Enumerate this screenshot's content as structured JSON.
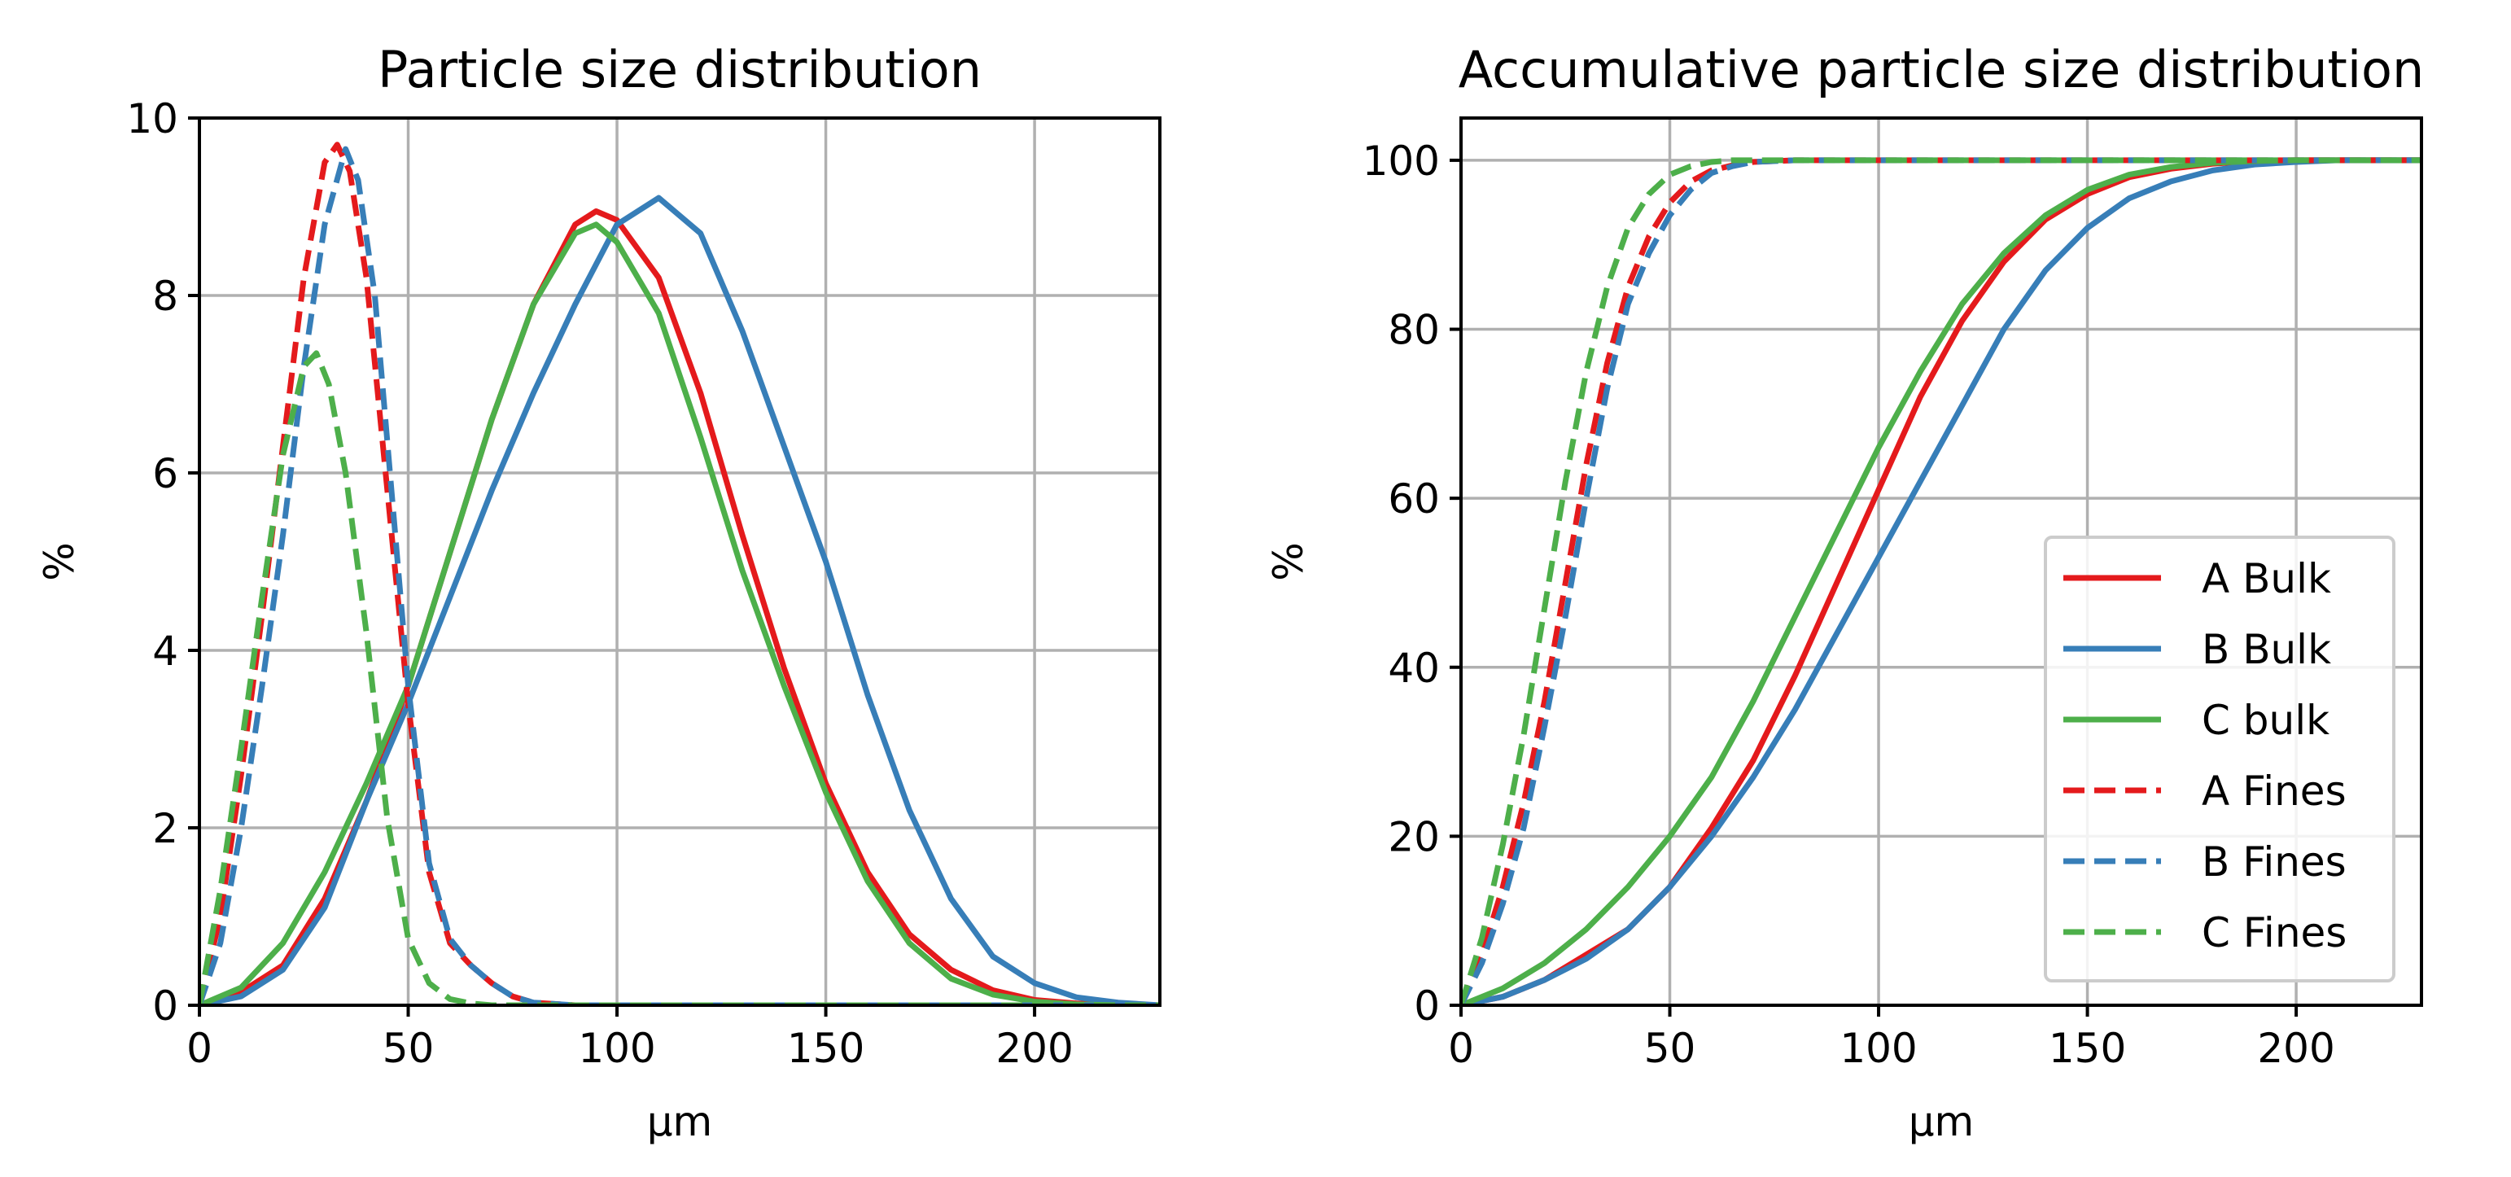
{
  "chart_data": [
    {
      "type": "line",
      "title": "Particle size distribution",
      "xlabel": "µm",
      "ylabel": "%",
      "xlim": [
        0,
        230
      ],
      "ylim": [
        0,
        10
      ],
      "grid": true,
      "xticks": [
        0,
        50,
        100,
        150,
        200
      ],
      "xtick_labels": [
        "0",
        "50",
        "100",
        "150",
        "200"
      ],
      "yticks": [
        0,
        2,
        4,
        6,
        8,
        10
      ],
      "ytick_labels": [
        "0",
        "2",
        "4",
        "6",
        "8",
        "10"
      ],
      "series": [
        {
          "name": "A Bulk",
          "color": "#e41a1c",
          "dash": "solid",
          "x": [
            0,
            10,
            20,
            30,
            40,
            50,
            60,
            70,
            80,
            90,
            95,
            100,
            110,
            120,
            130,
            140,
            150,
            160,
            170,
            180,
            190,
            200,
            210,
            220,
            230
          ],
          "y": [
            0,
            0.15,
            0.45,
            1.2,
            2.3,
            3.6,
            5.1,
            6.6,
            7.9,
            8.8,
            8.95,
            8.85,
            8.2,
            6.9,
            5.3,
            3.8,
            2.5,
            1.5,
            0.8,
            0.4,
            0.17,
            0.06,
            0.02,
            0.01,
            0
          ]
        },
        {
          "name": "B Bulk",
          "color": "#377eb8",
          "dash": "solid",
          "x": [
            0,
            10,
            20,
            30,
            40,
            50,
            60,
            70,
            80,
            90,
            100,
            110,
            120,
            130,
            140,
            150,
            160,
            170,
            180,
            190,
            200,
            210,
            220,
            230
          ],
          "y": [
            0,
            0.1,
            0.4,
            1.1,
            2.3,
            3.4,
            4.6,
            5.8,
            6.9,
            7.9,
            8.8,
            9.1,
            8.7,
            7.6,
            6.3,
            5.0,
            3.5,
            2.2,
            1.2,
            0.55,
            0.25,
            0.09,
            0.03,
            0
          ]
        },
        {
          "name": "C bulk",
          "color": "#4daf4a",
          "dash": "solid",
          "x": [
            0,
            10,
            20,
            30,
            40,
            50,
            60,
            70,
            80,
            90,
            95,
            100,
            110,
            120,
            130,
            140,
            150,
            160,
            170,
            180,
            190,
            200,
            210,
            220,
            230
          ],
          "y": [
            0,
            0.2,
            0.7,
            1.5,
            2.5,
            3.6,
            5.1,
            6.6,
            7.9,
            8.7,
            8.8,
            8.6,
            7.8,
            6.4,
            4.9,
            3.6,
            2.4,
            1.4,
            0.7,
            0.3,
            0.12,
            0.04,
            0.01,
            0,
            0
          ]
        },
        {
          "name": "A Fines",
          "color": "#e41a1c",
          "dash": "dashed",
          "x": [
            0,
            5,
            10,
            15,
            20,
            25,
            30,
            33,
            36,
            40,
            45,
            50,
            55,
            60,
            65,
            70,
            75,
            80,
            90,
            100,
            150,
            230
          ],
          "y": [
            0,
            1.0,
            2.6,
            4.4,
            6.3,
            8.2,
            9.5,
            9.7,
            9.4,
            8.2,
            5.8,
            3.4,
            1.5,
            0.7,
            0.45,
            0.25,
            0.1,
            0.03,
            0,
            0,
            0,
            0
          ]
        },
        {
          "name": "B Fines",
          "color": "#377eb8",
          "dash": "dashed",
          "x": [
            0,
            5,
            10,
            15,
            20,
            25,
            30,
            35,
            38,
            42,
            46,
            50,
            55,
            60,
            65,
            70,
            75,
            80,
            90,
            100,
            150,
            230
          ],
          "y": [
            0,
            0.7,
            2.0,
            3.6,
            5.3,
            7.2,
            8.8,
            9.65,
            9.3,
            8.0,
            5.8,
            3.6,
            1.6,
            0.75,
            0.45,
            0.25,
            0.1,
            0.03,
            0,
            0,
            0,
            0
          ]
        },
        {
          "name": "C Fines",
          "color": "#4daf4a",
          "dash": "dashed",
          "x": [
            0,
            5,
            10,
            15,
            20,
            25,
            28,
            31,
            35,
            40,
            45,
            50,
            55,
            60,
            65,
            70,
            80,
            100,
            150,
            230
          ],
          "y": [
            0,
            1.3,
            2.9,
            4.6,
            6.2,
            7.2,
            7.35,
            7.0,
            6.0,
            4.2,
            2.1,
            0.75,
            0.25,
            0.07,
            0.02,
            0,
            0,
            0,
            0,
            0
          ]
        }
      ]
    },
    {
      "type": "line",
      "title": "Accumulative particle size distribution",
      "xlabel": "µm",
      "ylabel": "%",
      "xlim": [
        0,
        230
      ],
      "ylim": [
        0,
        105
      ],
      "grid": true,
      "xticks": [
        0,
        50,
        100,
        150,
        200
      ],
      "xtick_labels": [
        "0",
        "50",
        "100",
        "150",
        "200"
      ],
      "yticks": [
        0,
        20,
        40,
        60,
        80,
        100
      ],
      "ytick_labels": [
        "0",
        "20",
        "40",
        "60",
        "80",
        "100"
      ],
      "legend": "center-right",
      "series": [
        {
          "name": "A Bulk",
          "color": "#e41a1c",
          "dash": "solid",
          "x": [
            0,
            10,
            20,
            30,
            40,
            50,
            60,
            70,
            80,
            90,
            100,
            110,
            120,
            130,
            140,
            150,
            160,
            170,
            180,
            190,
            200,
            210,
            230
          ],
          "y": [
            0,
            1,
            3,
            6,
            9,
            14,
            21,
            29,
            39,
            50,
            61,
            72,
            81,
            88,
            93,
            96,
            98,
            99,
            99.6,
            99.9,
            100,
            100,
            100
          ]
        },
        {
          "name": "B Bulk",
          "color": "#377eb8",
          "dash": "solid",
          "x": [
            0,
            10,
            20,
            30,
            40,
            50,
            60,
            70,
            80,
            90,
            100,
            110,
            120,
            130,
            140,
            150,
            160,
            170,
            180,
            190,
            200,
            210,
            230
          ],
          "y": [
            0,
            1,
            3,
            5.5,
            9,
            14,
            20,
            27,
            35,
            44,
            53,
            62,
            71,
            80,
            87,
            92,
            95.5,
            97.5,
            98.8,
            99.5,
            99.8,
            100,
            100
          ]
        },
        {
          "name": "C bulk",
          "color": "#4daf4a",
          "dash": "solid",
          "x": [
            0,
            10,
            20,
            30,
            40,
            50,
            60,
            70,
            80,
            90,
            100,
            110,
            120,
            130,
            140,
            150,
            160,
            170,
            180,
            190,
            200,
            230
          ],
          "y": [
            0,
            2,
            5,
            9,
            14,
            20,
            27,
            36,
            46,
            56,
            66,
            75,
            83,
            89,
            93.5,
            96.5,
            98.3,
            99.2,
            99.7,
            99.9,
            100,
            100
          ]
        },
        {
          "name": "A Fines",
          "color": "#e41a1c",
          "dash": "dashed",
          "x": [
            0,
            5,
            10,
            15,
            20,
            25,
            30,
            35,
            40,
            45,
            50,
            55,
            60,
            65,
            70,
            80,
            100,
            150,
            230
          ],
          "y": [
            0,
            6,
            14,
            24,
            36,
            50,
            64,
            76,
            85,
            91,
            95,
            97.5,
            98.8,
            99.4,
            99.8,
            100,
            100,
            100,
            100
          ]
        },
        {
          "name": "B Fines",
          "color": "#377eb8",
          "dash": "dashed",
          "x": [
            0,
            5,
            10,
            15,
            20,
            25,
            30,
            35,
            40,
            45,
            50,
            55,
            60,
            65,
            70,
            80,
            100,
            150,
            230
          ],
          "y": [
            0,
            5,
            12,
            21,
            33,
            46,
            60,
            73,
            83,
            89,
            93.5,
            96.5,
            98.5,
            99.3,
            99.8,
            100,
            100,
            100,
            100
          ]
        },
        {
          "name": "C Fines",
          "color": "#4daf4a",
          "dash": "dashed",
          "x": [
            0,
            5,
            10,
            15,
            20,
            25,
            30,
            35,
            40,
            45,
            50,
            55,
            60,
            65,
            70,
            80,
            100,
            150,
            230
          ],
          "y": [
            0,
            8,
            19,
            32,
            47,
            62,
            75,
            85,
            92,
            96,
            98.3,
            99.3,
            99.8,
            100,
            100,
            100,
            100,
            100,
            100
          ]
        }
      ]
    }
  ]
}
